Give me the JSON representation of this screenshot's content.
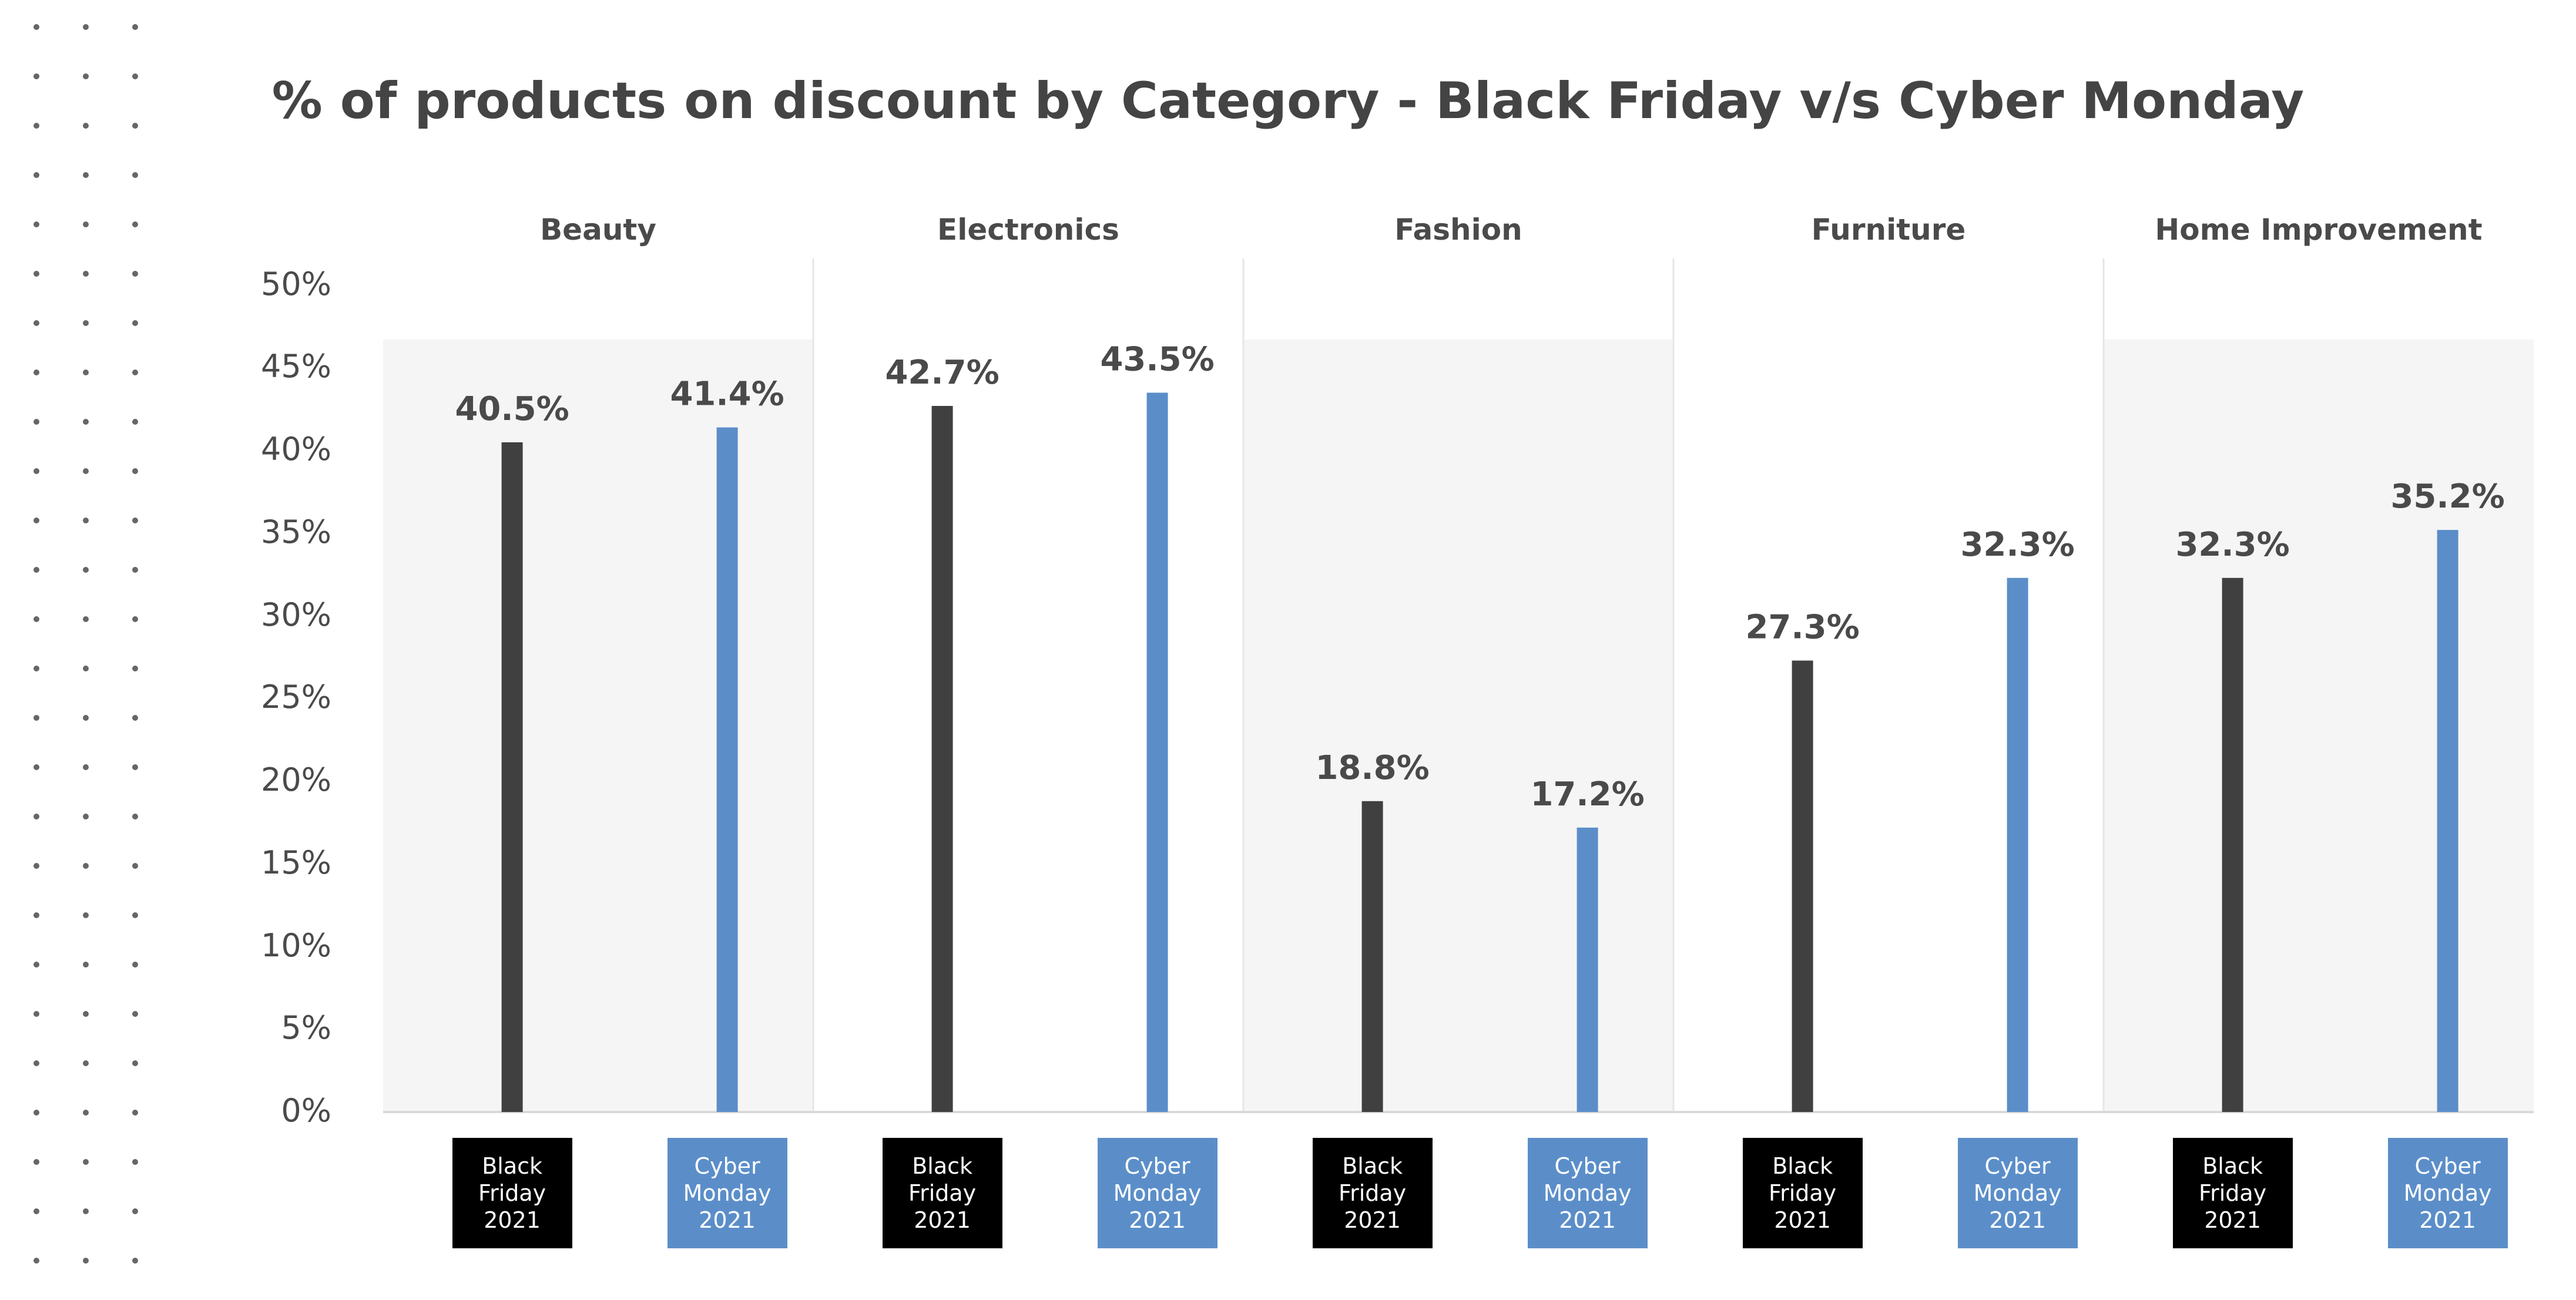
{
  "chart_data": {
    "type": "bar",
    "title": "% of products on discount by Category - Black Friday v/s Cyber Monday",
    "xlabel": "",
    "ylabel": "",
    "ylim": [
      0,
      50
    ],
    "yticks": [
      "0%",
      "5%",
      "10%",
      "15%",
      "20%",
      "25%",
      "30%",
      "35%",
      "40%",
      "45%",
      "50%"
    ],
    "grid": false,
    "categories": [
      "Beauty",
      "Electronics",
      "Fashion",
      "Furniture",
      "Home Improvement"
    ],
    "series": [
      {
        "name_lines": [
          "Black",
          "Friday",
          "2021"
        ],
        "color": "#404040",
        "box_color": "#000000",
        "values": [
          40.5,
          42.7,
          18.8,
          27.3,
          32.3
        ],
        "labels": [
          "40.5%",
          "42.7%",
          "18.8%",
          "27.3%",
          "32.3%"
        ]
      },
      {
        "name_lines": [
          "Cyber",
          "Monday",
          "2021"
        ],
        "color": "#5b8ec9",
        "box_color": "#5b8ec9",
        "values": [
          41.4,
          43.5,
          17.2,
          32.3,
          35.2
        ],
        "labels": [
          "41.4%",
          "43.5%",
          "17.2%",
          "32.3%",
          "35.2%"
        ]
      }
    ],
    "colors": {
      "axis": "#d9d9d9",
      "panel_shade": "#f5f5f5",
      "panel_divider": "#e6e6e6",
      "text": "#4a4a4a",
      "decor_dots": "#666666"
    }
  }
}
